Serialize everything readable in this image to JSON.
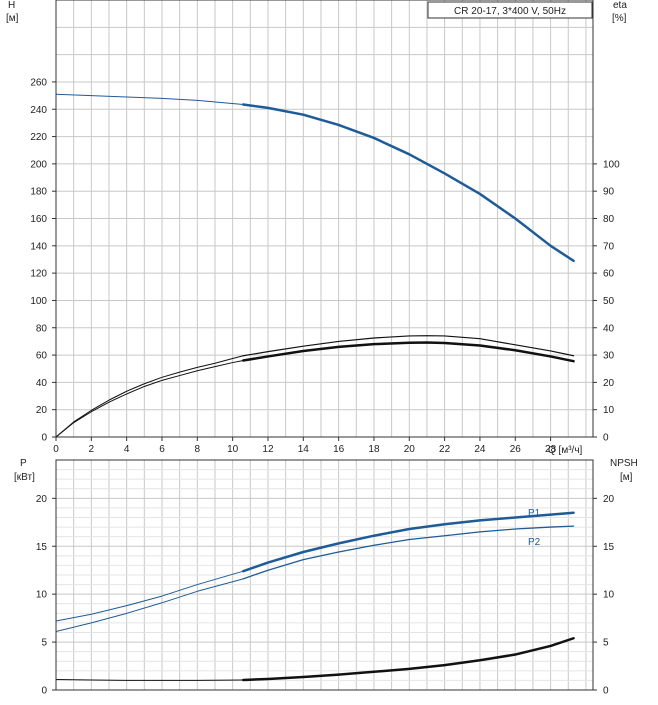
{
  "colors": {
    "blue": "#1f5b96",
    "black": "#111111",
    "grid": "#c8c8c8"
  },
  "legend_box": "CR 20-17, 3*400 V, 50Hz",
  "chart_data": [
    {
      "type": "line",
      "panel": "top",
      "y_left_label_line1": "H",
      "y_left_label_line2": "[м]",
      "y_right_label_line1": "eta",
      "y_right_label_line2": "[%]",
      "x_label": "Q [м³/ч]",
      "xlim": [
        0,
        30.4
      ],
      "x_ticks": [
        0,
        2,
        4,
        6,
        8,
        10,
        12,
        14,
        16,
        18,
        20,
        22,
        24,
        26,
        28
      ],
      "ylim": [
        0,
        320
      ],
      "y_ticks": [
        0,
        20,
        40,
        60,
        80,
        100,
        120,
        140,
        160,
        180,
        200,
        220,
        240,
        260
      ],
      "y_right_ticks_values": [
        0,
        10,
        20,
        30,
        40,
        50,
        60,
        70,
        80,
        90,
        100
      ],
      "grid": true,
      "series": [
        {
          "key": "H-extended",
          "color": "blue",
          "width": 1,
          "x": [
            0,
            2,
            4,
            6,
            8,
            10.6
          ],
          "y": [
            251,
            250,
            249,
            248,
            246.5,
            243.5
          ]
        },
        {
          "key": "H",
          "color": "blue",
          "width": 2.5,
          "x": [
            10.6,
            12,
            14,
            16,
            18,
            20,
            22,
            24,
            26,
            28,
            29.3
          ],
          "y": [
            243.5,
            241,
            236,
            228.5,
            219,
            207,
            193,
            178,
            160,
            140,
            129
          ]
        },
        {
          "key": "eta-total-extended",
          "color": "black",
          "width": 1,
          "x": [
            0,
            1,
            2,
            3,
            4,
            5,
            6,
            7,
            8,
            9,
            10,
            10.6
          ],
          "y": [
            0,
            11,
            19.5,
            27,
            33.5,
            39,
            43.7,
            47.5,
            51,
            54,
            57.5,
            59.5
          ]
        },
        {
          "key": "eta-total",
          "color": "black",
          "width": 1.2,
          "x": [
            10.6,
            12,
            14,
            16,
            18,
            20,
            21,
            22,
            24,
            26,
            28,
            29.3
          ],
          "y": [
            59.5,
            62.5,
            66.5,
            70,
            72.5,
            74,
            74.2,
            74,
            72,
            67.5,
            63,
            59.5
          ]
        },
        {
          "key": "eta-pump-extended",
          "color": "black",
          "width": 1,
          "x": [
            0,
            1,
            2,
            3,
            4,
            5,
            6,
            7,
            8,
            9,
            10,
            10.6
          ],
          "y": [
            0,
            10.5,
            18.5,
            25.5,
            31.5,
            37,
            41.5,
            45,
            48.5,
            51.5,
            54.5,
            56
          ]
        },
        {
          "key": "eta-pump",
          "color": "black",
          "width": 2.5,
          "x": [
            10.6,
            12,
            14,
            16,
            18,
            20,
            21,
            22,
            24,
            26,
            28,
            29.3
          ],
          "y": [
            56,
            59,
            63,
            66,
            68,
            69,
            69.2,
            68.8,
            67,
            63.5,
            59,
            55.5
          ]
        }
      ]
    },
    {
      "type": "line",
      "panel": "bottom",
      "y_left_label_line1": "P",
      "y_left_label_line2": "[кВт]",
      "y_right_label_line1": "NPSH",
      "y_right_label_line2": "[м]",
      "xlim": [
        0,
        30.4
      ],
      "ylim": [
        0,
        24
      ],
      "y_ticks": [
        0,
        5,
        10,
        15,
        20
      ],
      "y_right_ticks_values": [
        0,
        5,
        10,
        15,
        20
      ],
      "grid": true,
      "series": [
        {
          "key": "P1-extended",
          "color": "blue",
          "width": 1,
          "x": [
            0,
            2,
            4,
            6,
            8,
            10.6
          ],
          "y": [
            7.2,
            7.9,
            8.8,
            9.8,
            11,
            12.4
          ]
        },
        {
          "key": "P1",
          "name": "P1",
          "color": "blue",
          "width": 2.5,
          "x": [
            10.6,
            12,
            14,
            16,
            18,
            20,
            22,
            24,
            26,
            28,
            29.3
          ],
          "y": [
            12.4,
            13.3,
            14.4,
            15.3,
            16.1,
            16.8,
            17.3,
            17.7,
            18.0,
            18.3,
            18.5
          ]
        },
        {
          "key": "P2-extended",
          "color": "blue",
          "width": 1,
          "x": [
            0,
            2,
            4,
            6,
            8,
            10.6
          ],
          "y": [
            6.1,
            7.0,
            8.0,
            9.1,
            10.3,
            11.6
          ]
        },
        {
          "key": "P2",
          "name": "P2",
          "color": "blue",
          "width": 1.3,
          "x": [
            10.6,
            12,
            14,
            16,
            18,
            20,
            22,
            24,
            26,
            28,
            29.3
          ],
          "y": [
            11.6,
            12.5,
            13.6,
            14.4,
            15.1,
            15.7,
            16.1,
            16.5,
            16.8,
            17.0,
            17.1
          ]
        },
        {
          "key": "NPSH-extended",
          "color": "black",
          "width": 1,
          "x": [
            0,
            2,
            4,
            6,
            8,
            10.6
          ],
          "y": [
            1.1,
            1.05,
            1.0,
            1.0,
            1.0,
            1.05
          ]
        },
        {
          "key": "NPSH",
          "color": "black",
          "width": 2.5,
          "x": [
            10.6,
            12,
            14,
            16,
            18,
            20,
            22,
            24,
            26,
            28,
            29.3
          ],
          "y": [
            1.05,
            1.15,
            1.35,
            1.6,
            1.9,
            2.2,
            2.6,
            3.1,
            3.7,
            4.6,
            5.4
          ]
        }
      ]
    }
  ]
}
